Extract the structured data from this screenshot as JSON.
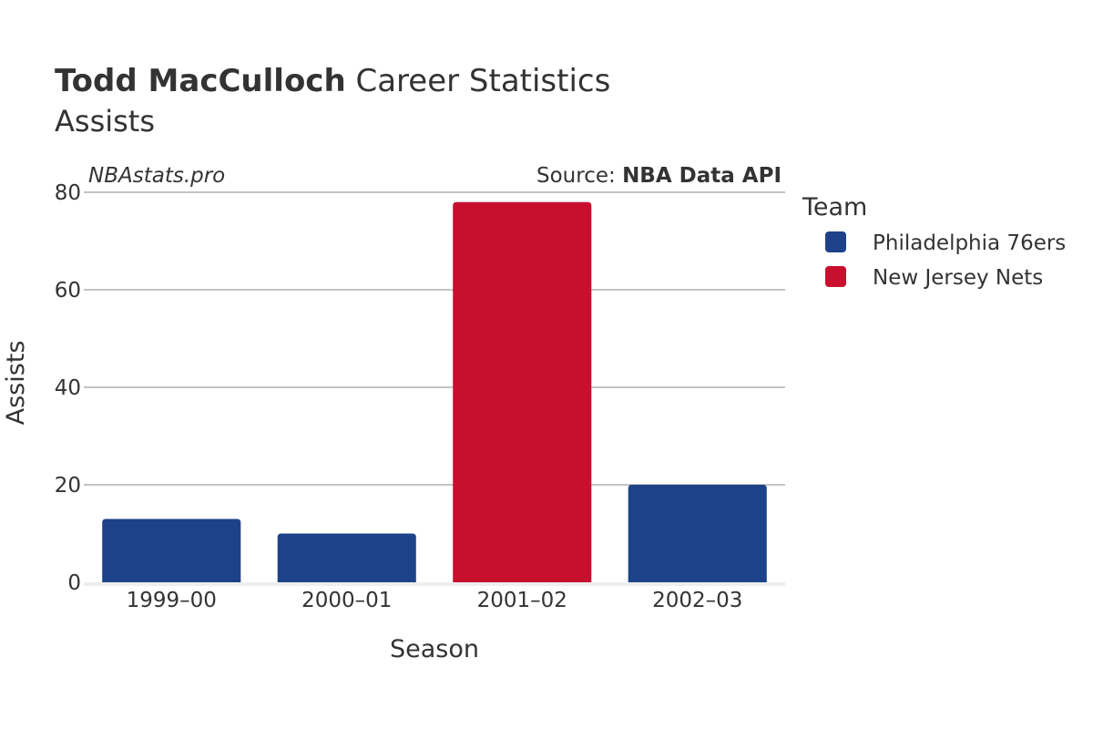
{
  "header": {
    "title_bold": "Todd MacCulloch",
    "title_rest": " Career Statistics",
    "subtitle": "Assists"
  },
  "watermark": "NBAstats.pro",
  "source": {
    "prefix": "Source: ",
    "name": "NBA Data API"
  },
  "legend": {
    "title": "Team",
    "items": [
      {
        "label": "Philadelphia 76ers",
        "color": "#1d428a"
      },
      {
        "label": "New Jersey Nets",
        "color": "#c8102e"
      }
    ]
  },
  "chart_data": {
    "type": "bar",
    "title": "Todd MacCulloch Career Statistics",
    "subtitle": "Assists",
    "xlabel": "Season",
    "ylabel": "Assists",
    "categories": [
      "1999–00",
      "2000–01",
      "2001–02",
      "2002–03"
    ],
    "values": [
      13,
      10,
      78,
      20
    ],
    "teams": [
      "Philadelphia 76ers",
      "Philadelphia 76ers",
      "New Jersey Nets",
      "Philadelphia 76ers"
    ],
    "colors": [
      "#1d428a",
      "#1d428a",
      "#c8102e",
      "#1d428a"
    ],
    "ylim": [
      0,
      80
    ],
    "yticks": [
      0,
      20,
      40,
      60,
      80
    ],
    "grid": true,
    "legend_position": "right"
  }
}
